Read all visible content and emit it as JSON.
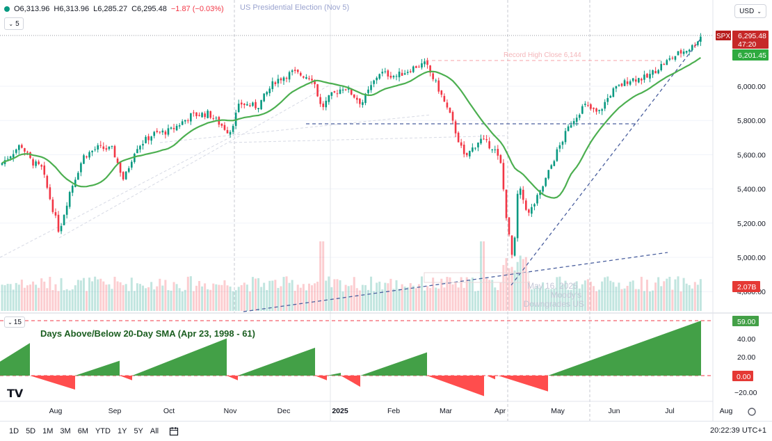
{
  "header": {
    "ohlc_text": "O6,313.96 H6,313.96 L6,285.27 C6,295.48 −1.87 (−0.03%)",
    "ohlc_open": "O6,313.96",
    "ohlc_high": "H6,313.96",
    "ohlc_low": "L6,285.27",
    "ohlc_close": "C6,295.48",
    "ohlc_change": "−1.87 (−0.03%)",
    "event_label": "US Presidential Election (Nov 5)",
    "layer_count": "5",
    "currency": "USD"
  },
  "price_pane": {
    "symbol_tag": "SPX",
    "last_price": "6,295.48",
    "countdown": "47:20",
    "sma_value": "6,201.45",
    "volume_value": "2.07B",
    "annotation_record": "Record High Close 6,144",
    "annotation_moodys_1": "May 16, 2025",
    "annotation_moodys_2": "Moody's",
    "annotation_moodys_3": "Downgrades US",
    "y_ticks": [
      "6,000.00",
      "5,800.00",
      "5,600.00",
      "5,400.00",
      "5,200.00",
      "5,000.00",
      "4,800.00"
    ],
    "colors": {
      "up": "#089981",
      "down": "#f23645",
      "sma": "#4caf50"
    }
  },
  "indicator_pane": {
    "param": "15",
    "title": "Days Above/Below 20-Day SMA (Apr 23, 1998 - 61)",
    "value_top": "59.00",
    "value_zero": "0.00",
    "y_ticks": [
      "40.00",
      "20.00",
      "−20.00"
    ]
  },
  "x_axis": {
    "labels": [
      "Aug",
      "Sep",
      "Oct",
      "Nov",
      "Dec",
      "2025",
      "Feb",
      "Mar",
      "Apr",
      "May",
      "Jun",
      "Jul",
      "Aug"
    ]
  },
  "bottom_bar": {
    "timeframes": [
      "1D",
      "5D",
      "1M",
      "3M",
      "6M",
      "YTD",
      "1Y",
      "5Y",
      "All"
    ],
    "clock": "20:22:39 UTC+1"
  },
  "chart_data": [
    {
      "type": "candlestick",
      "title": "SPX",
      "x": [
        "2024-07",
        "2024-08",
        "2024-09",
        "2024-10",
        "2024-11",
        "2024-12",
        "2025-01",
        "2025-02",
        "2025-03",
        "2025-04",
        "2025-05",
        "2025-06",
        "2025-07"
      ],
      "close_approx": [
        5600,
        5400,
        5700,
        5760,
        5960,
        6040,
        6000,
        6120,
        5580,
        5400,
        5900,
        6170,
        6295.48
      ],
      "series": [
        {
          "name": "20-Day SMA",
          "last": 6201.45
        }
      ],
      "annotations": [
        "Record High Close 6,144",
        "May 16, 2025 Moody's Downgrades US",
        "US Presidential Election (Nov 5)"
      ],
      "ylim": [
        4800,
        6350
      ]
    },
    {
      "type": "area",
      "title": "Days Above/Below 20-Day SMA (Apr 23, 1998 - 61)",
      "x": [
        "2024-07",
        "2024-08",
        "2024-09",
        "2024-10",
        "2024-11",
        "2024-12",
        "2025-01",
        "2025-02",
        "2025-03",
        "2025-04",
        "2025-05",
        "2025-06",
        "2025-07"
      ],
      "values": [
        35,
        -15,
        15,
        40,
        -5,
        30,
        -15,
        20,
        -20,
        -15,
        10,
        40,
        59
      ],
      "ylim": [
        -20,
        60
      ]
    }
  ]
}
